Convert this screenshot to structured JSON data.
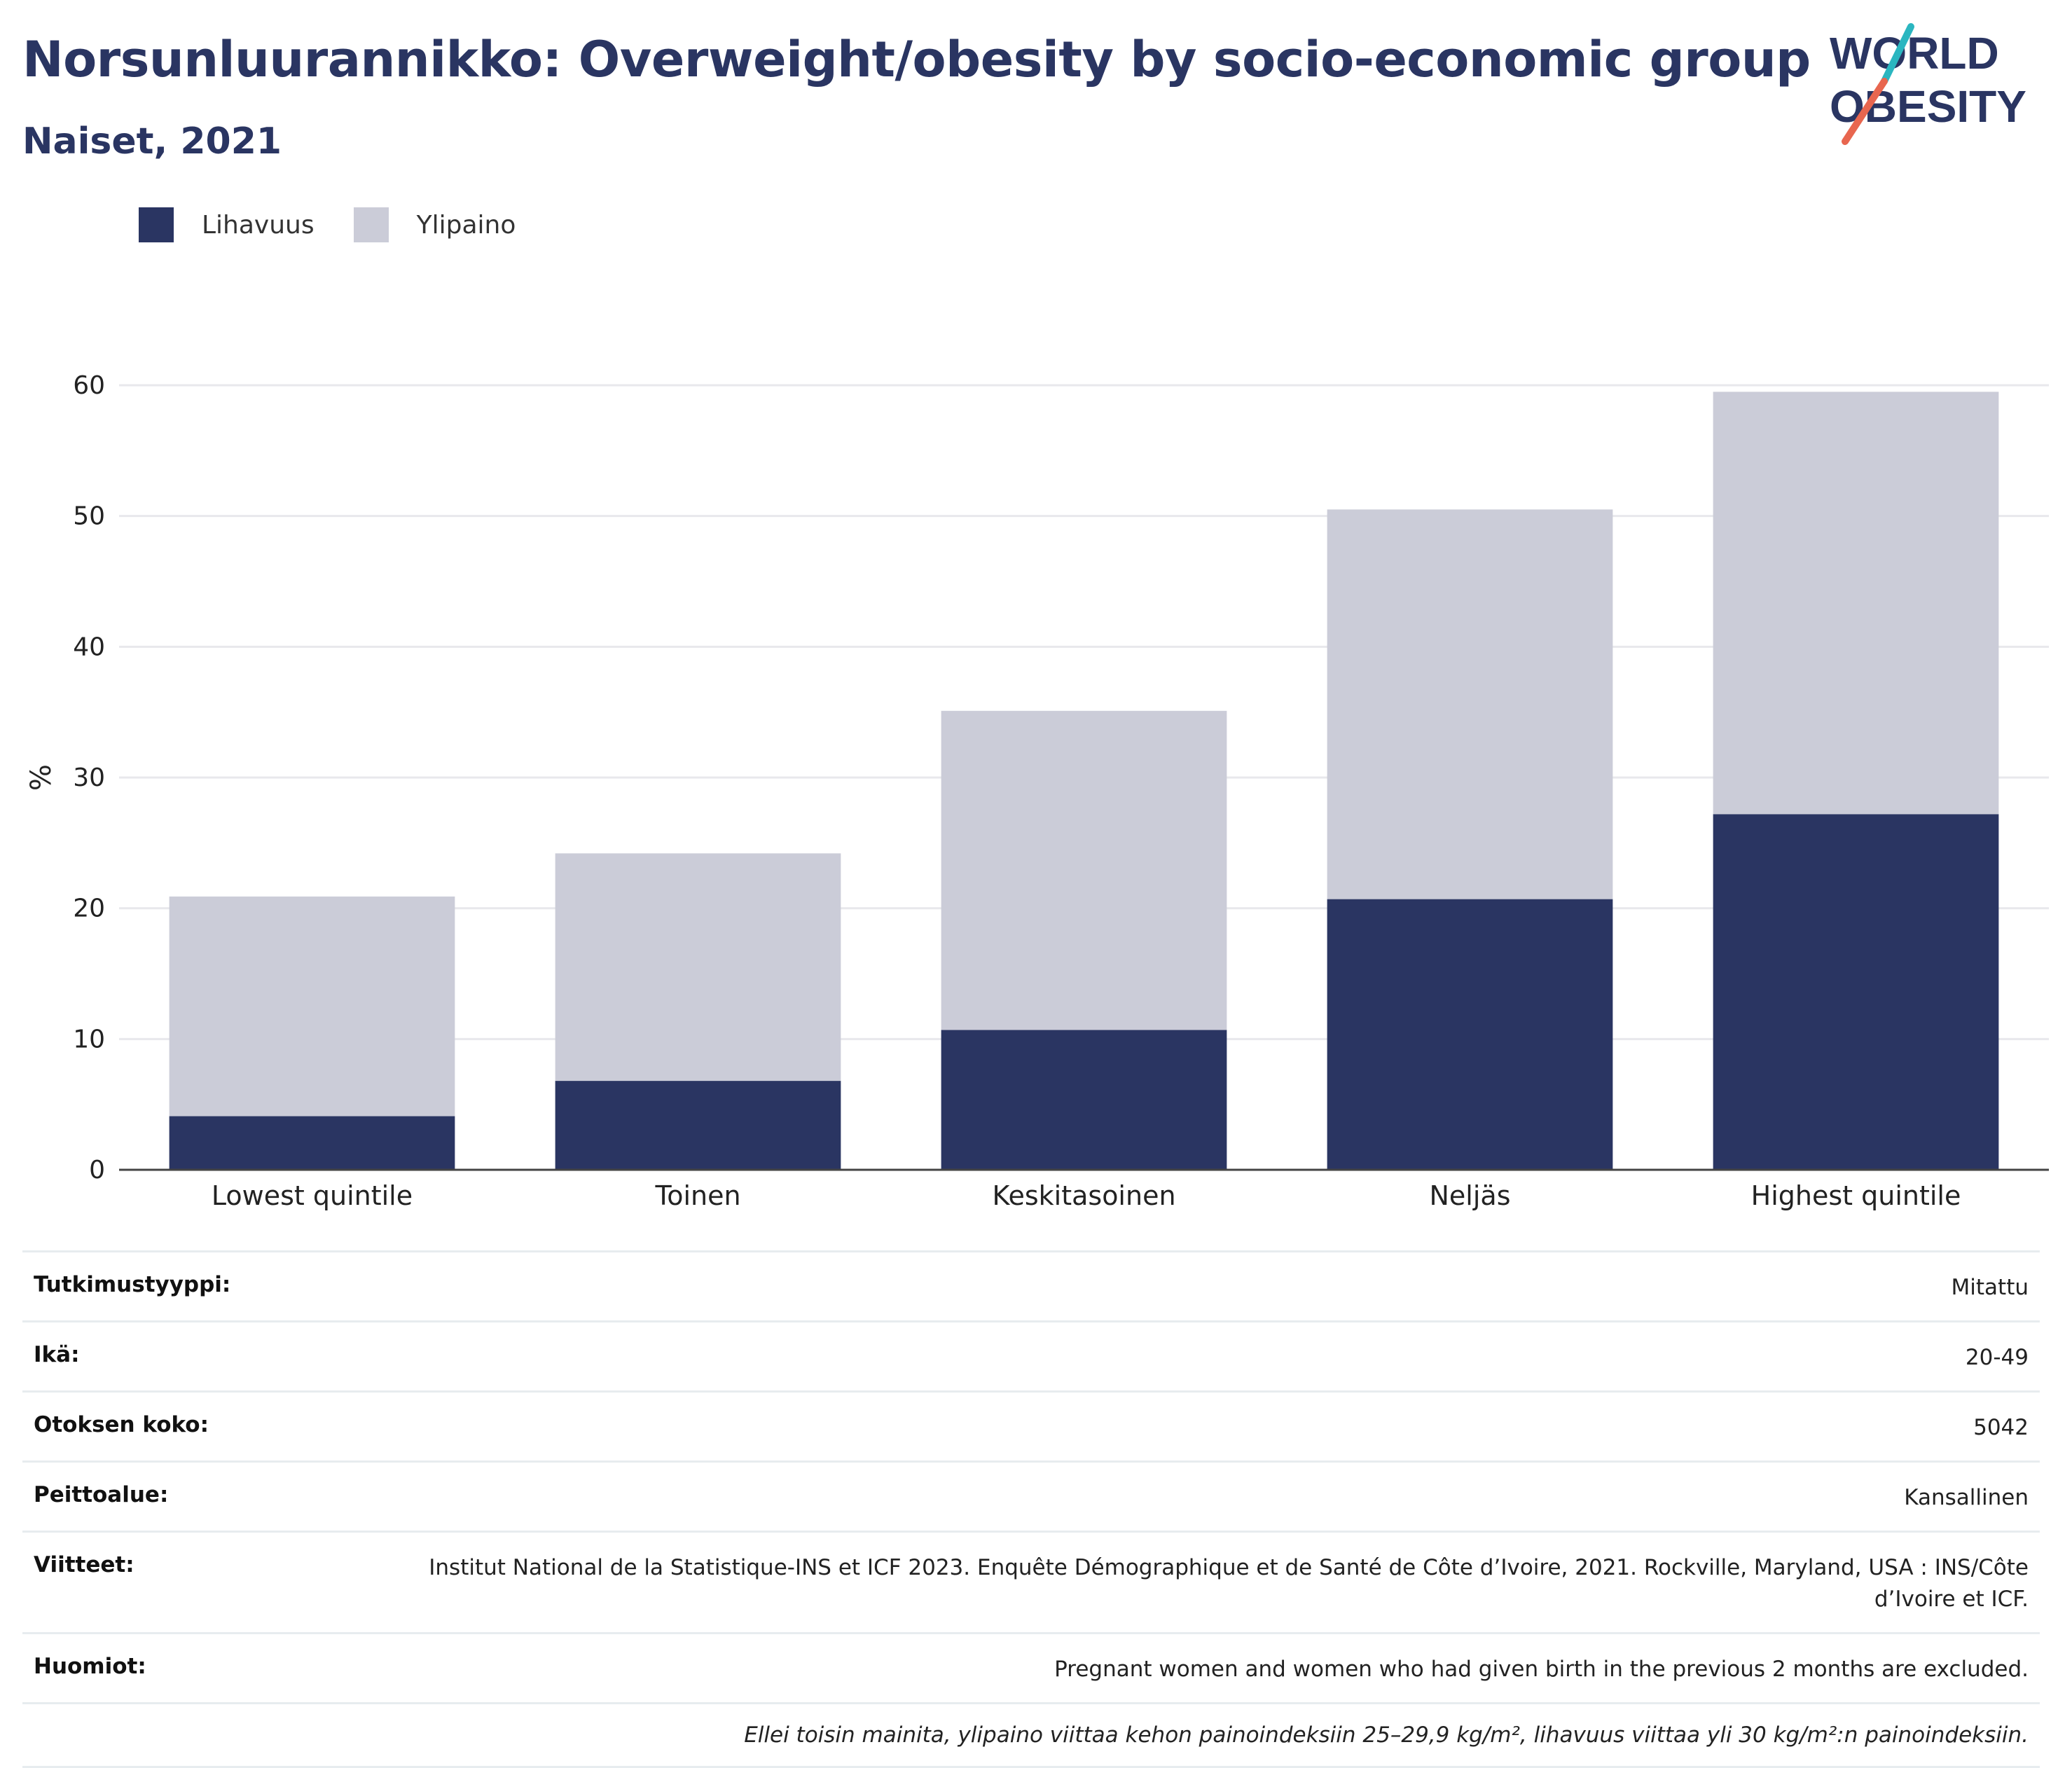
{
  "header": {
    "title": "Norsunluurannikko: Overweight/obesity by socio-economic group",
    "subtitle": "Naiset, 2021"
  },
  "logo": {
    "line1": "WORLD",
    "line2": "OBESITY",
    "colors": {
      "text": "#2a3562",
      "slash_top": "#2bb6c0",
      "slash_bottom": "#e8664f"
    }
  },
  "legend": [
    {
      "label": "Lihavuus",
      "color": "#2a3562"
    },
    {
      "label": "Ylipaino",
      "color": "#cbccd8"
    }
  ],
  "chart_data": {
    "type": "bar",
    "stacked": true,
    "categories": [
      "Lowest quintile",
      "Toinen",
      "Keskitasoinen",
      "Neljäs",
      "Highest quintile"
    ],
    "series": [
      {
        "name": "Lihavuus",
        "values": [
          4.1,
          6.8,
          10.7,
          20.7,
          27.2
        ],
        "color": "#2a3562"
      },
      {
        "name": "Ylipaino",
        "values": [
          16.8,
          17.4,
          24.4,
          29.8,
          32.3
        ],
        "color": "#cbccd8"
      }
    ],
    "ylabel": "%",
    "ylim": [
      0,
      60
    ],
    "yticks": [
      0,
      10,
      20,
      30,
      40,
      50,
      60
    ],
    "grid": true,
    "legend_position": "top-left"
  },
  "info": {
    "rows": [
      {
        "label": "Tutkimustyyppi:",
        "value": "Mitattu"
      },
      {
        "label": "Ikä:",
        "value": "20-49"
      },
      {
        "label": "Otoksen koko:",
        "value": "5042"
      },
      {
        "label": "Peittoalue:",
        "value": "Kansallinen"
      },
      {
        "label": "Viitteet:",
        "value": "Institut National de la Statistique-INS et ICF 2023. Enquête Démographique et de Santé de Côte d’Ivoire, 2021. Rockville, Maryland, USA : INS/Côte d’Ivoire et ICF."
      },
      {
        "label": "Huomiot:",
        "value": "Pregnant women and women who had given birth in the previous 2 months are excluded."
      }
    ],
    "note": "Ellei toisin mainita, ylipaino viittaa kehon painoindeksiin 25–29,9 kg/m², lihavuus viittaa yli 30 kg/m²:n painoindeksiin."
  }
}
